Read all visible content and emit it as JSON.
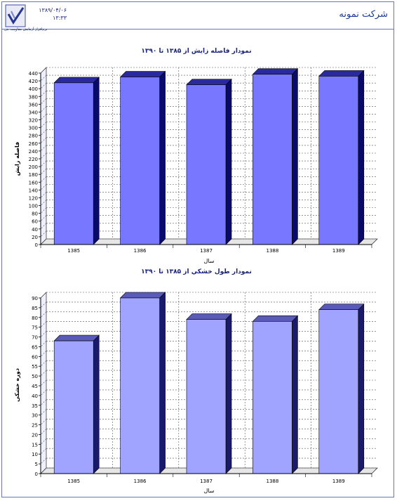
{
  "header": {
    "company_name": "شرکت نمونه",
    "date_line1": "۱۳۸۹/۰۴/۰۶",
    "date_line2": "۱۳:۳۳",
    "tagline": "نرم‌افزار آزمایش مقاومت بتن"
  },
  "chart_data": [
    {
      "type": "bar",
      "title": "نمودار فاصله زایش از ۱۳۸۵ تا ۱۳۹۰",
      "xlabel": "سال",
      "ylabel": "فاصله زایش",
      "categories": [
        "1385",
        "1386",
        "1387",
        "1388",
        "1389"
      ],
      "values": [
        415,
        430,
        410,
        437,
        432
      ],
      "ylim": [
        0,
        440
      ],
      "ytick_step": 20,
      "grid": true,
      "colors": {
        "front": "#7777ff",
        "top": "#2a2a9e",
        "side": "#0a0a6a"
      }
    },
    {
      "type": "bar",
      "title": "نمودار طول خشکي از ۱۳۸۵ تا ۱۳۹۰",
      "xlabel": "سال",
      "ylabel": "دوره خشکی",
      "categories": [
        "1385",
        "1386",
        "1387",
        "1388",
        "1389"
      ],
      "values": [
        68,
        90,
        79,
        78,
        84
      ],
      "ylim": [
        0,
        90
      ],
      "ytick_step": 5,
      "grid": true,
      "colors": {
        "front": "#a0a4ff",
        "top": "#5a5ab8",
        "side": "#1a1a6a"
      }
    }
  ]
}
